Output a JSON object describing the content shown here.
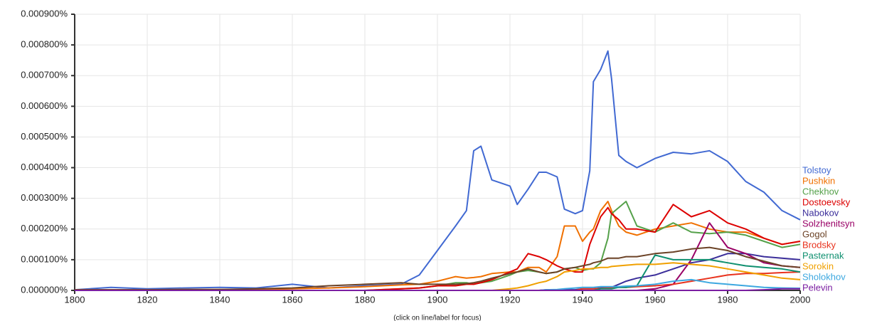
{
  "chart_data": {
    "type": "line",
    "note": "(click on line/label for focus)",
    "x": [
      1800,
      1810,
      1820,
      1830,
      1840,
      1850,
      1860,
      1870,
      1880,
      1890,
      1895,
      1900,
      1905,
      1908,
      1910,
      1912,
      1915,
      1920,
      1922,
      1925,
      1928,
      1930,
      1933,
      1935,
      1938,
      1940,
      1942,
      1943,
      1945,
      1947,
      1948,
      1950,
      1952,
      1955,
      1960,
      1965,
      1970,
      1975,
      1980,
      1985,
      1990,
      1995,
      2000
    ],
    "xlim": [
      1800,
      2000
    ],
    "xticks": [
      1800,
      1820,
      1840,
      1860,
      1880,
      1900,
      1920,
      1940,
      1960,
      1980,
      2000
    ],
    "ylim": [
      0,
      0.0009
    ],
    "yticks": [
      {
        "value": 0,
        "label": "0.000000%"
      },
      {
        "value": 0.0001,
        "label": "0.000100%"
      },
      {
        "value": 0.0002,
        "label": "0.000200%"
      },
      {
        "value": 0.0003,
        "label": "0.000300%"
      },
      {
        "value": 0.0004,
        "label": "0.000400%"
      },
      {
        "value": 0.0005,
        "label": "0.000500%"
      },
      {
        "value": 0.0006,
        "label": "0.000600%"
      },
      {
        "value": 0.0007,
        "label": "0.000700%"
      },
      {
        "value": 0.0008,
        "label": "0.000800%"
      },
      {
        "value": 0.0009,
        "label": "0.000900%"
      }
    ],
    "grid": true,
    "series": [
      {
        "name": "Tolstoy",
        "color": "#4169d2",
        "values": [
          2e-06,
          1e-05,
          5e-06,
          8e-06,
          1e-05,
          8e-06,
          2e-05,
          8e-06,
          1.5e-05,
          2e-05,
          5e-05,
          0.00013,
          0.00021,
          0.00026,
          0.000455,
          0.00047,
          0.00036,
          0.00034,
          0.00028,
          0.00033,
          0.000385,
          0.000385,
          0.00037,
          0.000265,
          0.00025,
          0.00026,
          0.00039,
          0.00068,
          0.00072,
          0.00078,
          0.00069,
          0.00044,
          0.00042,
          0.0004,
          0.00043,
          0.00045,
          0.000445,
          0.000455,
          0.00042,
          0.000355,
          0.00032,
          0.00026,
          0.00023
        ]
      },
      {
        "name": "Pushkin",
        "color": "#f07000",
        "values": [
          2e-06,
          2e-06,
          2e-06,
          3e-06,
          3e-06,
          3e-06,
          5e-06,
          8e-06,
          1.2e-05,
          1.8e-05,
          2e-05,
          3e-05,
          4.5e-05,
          4e-05,
          4.2e-05,
          4.5e-05,
          5.5e-05,
          6e-05,
          6e-05,
          7.5e-05,
          7.5e-05,
          6e-05,
          0.00011,
          0.00021,
          0.00021,
          0.00016,
          0.00019,
          0.0002,
          0.00026,
          0.00029,
          0.00026,
          0.00021,
          0.00019,
          0.00018,
          0.0002,
          0.00021,
          0.00022,
          0.0002,
          0.00019,
          0.00019,
          0.00017,
          0.00015,
          0.00016
        ]
      },
      {
        "name": "Chekhov",
        "color": "#55a14a",
        "values": [
          0,
          0,
          0,
          0,
          0,
          0,
          0,
          0,
          0,
          5e-06,
          8e-06,
          1.5e-05,
          2.5e-05,
          2.5e-05,
          2e-05,
          2.5e-05,
          3e-05,
          5e-05,
          6e-05,
          6.5e-05,
          6e-05,
          5.5e-05,
          6e-05,
          7e-05,
          7.5e-05,
          6.5e-05,
          7e-05,
          7e-05,
          9e-05,
          0.00017,
          0.00025,
          0.00027,
          0.00029,
          0.00021,
          0.00019,
          0.00022,
          0.00019,
          0.000185,
          0.00019,
          0.00018,
          0.00016,
          0.00014,
          0.00015
        ]
      },
      {
        "name": "Dostoevsky",
        "color": "#dd0000",
        "values": [
          0,
          0,
          0,
          0,
          0,
          0,
          0,
          0,
          0,
          5e-06,
          8e-06,
          1.5e-05,
          1.5e-05,
          2e-05,
          2e-05,
          2.5e-05,
          3.5e-05,
          6e-05,
          7e-05,
          0.00012,
          0.00011,
          0.0001,
          8e-05,
          7e-05,
          6e-05,
          6e-05,
          0.00015,
          0.00018,
          0.00024,
          0.00027,
          0.00025,
          0.00023,
          0.0002,
          0.0002,
          0.00019,
          0.00028,
          0.00024,
          0.00026,
          0.00022,
          0.0002,
          0.00017,
          0.00015,
          0.00016
        ]
      },
      {
        "name": "Nabokov",
        "color": "#3b2e9a",
        "values": [
          0,
          0,
          0,
          0,
          0,
          0,
          0,
          0,
          0,
          0,
          0,
          0,
          0,
          0,
          0,
          0,
          0,
          0,
          0,
          0,
          0,
          2e-06,
          2e-06,
          2e-06,
          2e-06,
          5e-06,
          5e-06,
          5e-06,
          8e-06,
          1e-05,
          1e-05,
          2e-05,
          3e-05,
          4e-05,
          5e-05,
          7e-05,
          9e-05,
          0.0001,
          0.00012,
          0.00012,
          0.00011,
          0.000105,
          0.0001
        ]
      },
      {
        "name": "Solzhenitsyn",
        "color": "#990066",
        "values": [
          0,
          0,
          0,
          0,
          0,
          0,
          0,
          0,
          0,
          0,
          0,
          0,
          0,
          0,
          0,
          0,
          0,
          0,
          0,
          0,
          0,
          0,
          0,
          0,
          0,
          0,
          0,
          0,
          0,
          0,
          0,
          0,
          0,
          0,
          5e-06,
          2e-05,
          0.0001,
          0.00022,
          0.00014,
          0.00012,
          9e-05,
          8e-05,
          7.5e-05
        ]
      },
      {
        "name": "Gogol",
        "color": "#6b4226",
        "values": [
          2e-06,
          2e-06,
          2e-06,
          3e-06,
          3e-06,
          5e-06,
          8e-06,
          1.5e-05,
          2e-05,
          2.5e-05,
          2e-05,
          2e-05,
          2e-05,
          2.2e-05,
          2.5e-05,
          3e-05,
          4e-05,
          5.5e-05,
          6e-05,
          7e-05,
          6e-05,
          5.5e-05,
          6e-05,
          7e-05,
          7.5e-05,
          8e-05,
          8.5e-05,
          9e-05,
          9.5e-05,
          0.000105,
          0.000105,
          0.000105,
          0.00011,
          0.00011,
          0.00012,
          0.000125,
          0.000135,
          0.00014,
          0.00013,
          0.00011,
          9.5e-05,
          8e-05,
          7.5e-05
        ]
      },
      {
        "name": "Brodsky",
        "color": "#e8321d",
        "values": [
          0,
          0,
          0,
          0,
          0,
          0,
          0,
          0,
          0,
          0,
          0,
          0,
          0,
          0,
          0,
          0,
          0,
          0,
          0,
          0,
          0,
          0,
          0,
          0,
          0,
          5e-06,
          5e-06,
          5e-06,
          6e-06,
          8e-06,
          8e-06,
          1e-05,
          1e-05,
          1.2e-05,
          1.5e-05,
          2e-05,
          3e-05,
          4e-05,
          5e-05,
          5.5e-05,
          5.5e-05,
          5.8e-05,
          6e-05
        ]
      },
      {
        "name": "Pasternak",
        "color": "#109070",
        "values": [
          0,
          0,
          0,
          0,
          0,
          0,
          0,
          0,
          0,
          0,
          0,
          0,
          0,
          0,
          0,
          0,
          0,
          0,
          0,
          0,
          0,
          0,
          0,
          0,
          0,
          0,
          0,
          0,
          5e-06,
          5e-06,
          5e-06,
          1e-05,
          1e-05,
          1.5e-05,
          0.000115,
          0.0001,
          0.0001,
          0.0001,
          9e-05,
          8e-05,
          7.5e-05,
          7e-05,
          6e-05
        ]
      },
      {
        "name": "Sorokin",
        "color": "#f0a000",
        "values": [
          0,
          0,
          0,
          0,
          0,
          0,
          0,
          0,
          0,
          0,
          0,
          0,
          0,
          0,
          0,
          0,
          0,
          5e-06,
          8e-06,
          1.5e-05,
          2.5e-05,
          3e-05,
          4.5e-05,
          6e-05,
          6.5e-05,
          7e-05,
          7e-05,
          7.2e-05,
          7.5e-05,
          7.5e-05,
          7.8e-05,
          8e-05,
          8.2e-05,
          8.5e-05,
          8.5e-05,
          9e-05,
          8.5e-05,
          8e-05,
          7e-05,
          6e-05,
          5e-05,
          4e-05,
          3.5e-05
        ]
      },
      {
        "name": "Sholokhov",
        "color": "#3da8e0",
        "values": [
          0,
          0,
          0,
          0,
          0,
          0,
          0,
          0,
          0,
          0,
          0,
          0,
          0,
          0,
          0,
          0,
          0,
          0,
          0,
          0,
          0,
          2e-06,
          3e-06,
          5e-06,
          8e-06,
          1e-05,
          1e-05,
          1e-05,
          1.2e-05,
          1.2e-05,
          1.2e-05,
          1.2e-05,
          1.4e-05,
          1.5e-05,
          2e-05,
          3e-05,
          3.5e-05,
          2.5e-05,
          2e-05,
          1.5e-05,
          1e-05,
          8e-06,
          7e-06
        ]
      },
      {
        "name": "Pelevin",
        "color": "#7b1fa2",
        "values": [
          0,
          0,
          0,
          0,
          0,
          0,
          0,
          0,
          0,
          0,
          0,
          0,
          0,
          0,
          0,
          0,
          0,
          0,
          0,
          0,
          0,
          0,
          0,
          0,
          0,
          0,
          0,
          0,
          0,
          0,
          0,
          0,
          0,
          0,
          0,
          0,
          0,
          0,
          0,
          0,
          2e-06,
          5e-06,
          5e-06
        ]
      }
    ]
  }
}
